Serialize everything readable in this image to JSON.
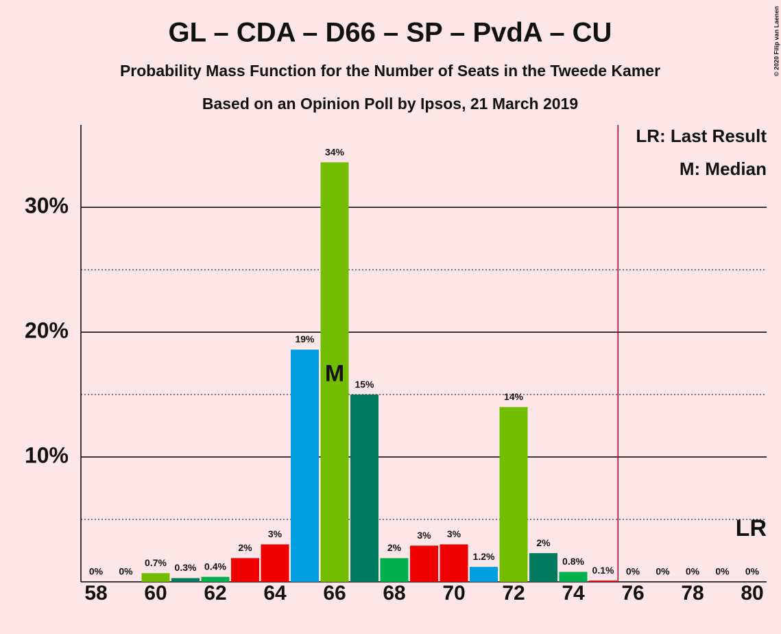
{
  "chart_data": {
    "type": "bar",
    "title": "GL – CDA – D66 – SP – PvdA – CU",
    "subtitle": "Probability Mass Function for the Number of Seats in the Tweede Kamer",
    "subtitle2": "Based on an Opinion Poll by Ipsos, 21 March 2019",
    "copyright": "© 2020 Filip van Laenen",
    "categories": [
      58,
      null,
      60,
      null,
      62,
      null,
      64,
      null,
      66,
      null,
      68,
      null,
      70,
      null,
      72,
      null,
      74,
      null,
      76,
      null,
      78,
      null,
      80
    ],
    "values": [
      0,
      0,
      0.7,
      0.3,
      0.4,
      1.9,
      3.0,
      18.6,
      33.6,
      15.0,
      1.9,
      2.9,
      3.0,
      1.2,
      14.0,
      2.3,
      0.8,
      0.1,
      0,
      0,
      0,
      0,
      0
    ],
    "value_labels": [
      "0%",
      "0%",
      "0.7%",
      "0.3%",
      "0.4%",
      "2%",
      "3%",
      "19%",
      "34%",
      "15%",
      "2%",
      "3%",
      "3%",
      "1.2%",
      "14%",
      "2%",
      "0.8%",
      "0.1%",
      "0%",
      "0%",
      "0%",
      "0%",
      "0%"
    ],
    "colors": [
      "#73bd00",
      "#007b5f",
      "#73bd00",
      "#007b5f",
      "#00b04f",
      "#ee0000",
      "#ee0000",
      "#009ee0",
      "#73bd00",
      "#007b5f",
      "#00b04f",
      "#ee0000",
      "#ee0000",
      "#009ee0",
      "#73bd00",
      "#007b5f",
      "#00b04f",
      "#ee0000",
      "#009ee0",
      "#73bd00",
      "#007b5f",
      "#00b04f",
      "#ee0000"
    ],
    "ylim": [
      0,
      36.6
    ],
    "yticks": [
      {
        "value": 10,
        "label": "10%"
      },
      {
        "value": 20,
        "label": "20%"
      },
      {
        "value": 30,
        "label": "30%"
      }
    ],
    "minor_yticks": [
      5,
      15,
      25
    ],
    "grid": true,
    "median": {
      "x": 66,
      "label": "M"
    },
    "last_result": {
      "x": 75.5,
      "label": "LR"
    },
    "legend": [
      "LR: Last Result",
      "M: Median"
    ]
  }
}
